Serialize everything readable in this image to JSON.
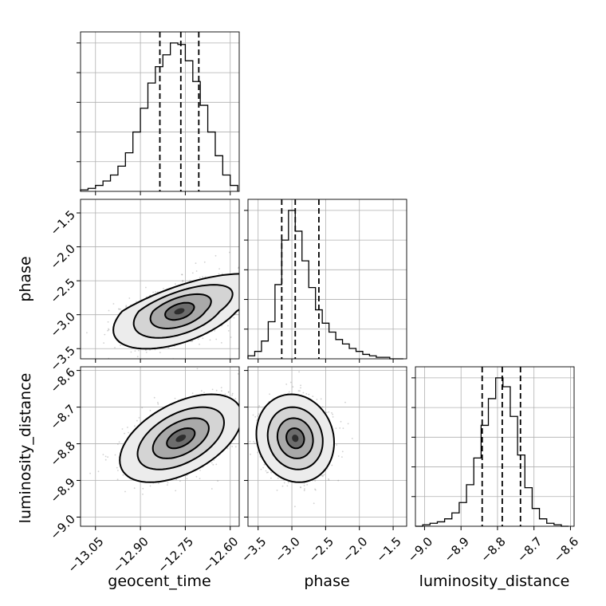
{
  "chart_data": {
    "type": "corner",
    "grid": true,
    "parameters": [
      "geocent_time",
      "phase",
      "luminosity_distance"
    ],
    "axes": {
      "geocent_time": {
        "label": "geocent_time",
        "range": [
          -13.1,
          -12.57
        ],
        "ticks": [
          -13.05,
          -12.9,
          -12.75,
          -12.6
        ],
        "tick_labels": [
          "−13.05",
          "−12.90",
          "−12.75",
          "−12.60"
        ]
      },
      "phase": {
        "label": "phase",
        "range": [
          -3.65,
          -1.3
        ],
        "ticks": [
          -3.5,
          -3.0,
          -2.5,
          -2.0,
          -1.5
        ],
        "tick_labels": [
          "−3.5",
          "−3.0",
          "−2.5",
          "−2.0",
          "−1.5"
        ]
      },
      "luminosity_distance": {
        "label": "luminosity_distance",
        "range": [
          -9.025,
          -8.59
        ],
        "ticks": [
          -9.0,
          -8.9,
          -8.8,
          -8.7,
          -8.6
        ],
        "tick_labels": [
          "−9.0",
          "−8.9",
          "−8.8",
          "−8.7",
          "−8.6"
        ]
      }
    },
    "histograms": {
      "geocent_time": {
        "quantiles": [
          -12.835,
          -12.765,
          -12.705
        ],
        "bin_edges": [
          -13.1,
          -13.075,
          -13.05,
          -13.025,
          -13.0,
          -12.975,
          -12.95,
          -12.925,
          -12.9,
          -12.875,
          -12.85,
          -12.825,
          -12.8,
          -12.775,
          -12.75,
          -12.725,
          -12.7,
          -12.675,
          -12.65,
          -12.625,
          -12.6,
          -12.575
        ],
        "counts": [
          1,
          2,
          4,
          7,
          11,
          17,
          26,
          40,
          56,
          73,
          84,
          92,
          100,
          99,
          88,
          74,
          58,
          40,
          24,
          11,
          4
        ]
      },
      "phase": {
        "quantiles": [
          -3.15,
          -2.95,
          -2.6
        ],
        "bin_edges": [
          -3.65,
          -3.55,
          -3.45,
          -3.35,
          -3.25,
          -3.15,
          -3.05,
          -2.95,
          -2.85,
          -2.75,
          -2.65,
          -2.55,
          -2.45,
          -2.35,
          -2.25,
          -2.15,
          -2.05,
          -1.95,
          -1.85,
          -1.75,
          -1.65,
          -1.55,
          -1.45,
          -1.35
        ],
        "counts": [
          2,
          5,
          12,
          25,
          50,
          80,
          100,
          86,
          66,
          48,
          33,
          24,
          18,
          13,
          10,
          7,
          5,
          3,
          2,
          1,
          1,
          0,
          0
        ]
      },
      "luminosity_distance": {
        "quantiles": [
          -8.842,
          -8.787,
          -8.737
        ],
        "bin_edges": [
          -9.025,
          -9.005,
          -8.985,
          -8.965,
          -8.945,
          -8.925,
          -8.905,
          -8.885,
          -8.865,
          -8.845,
          -8.825,
          -8.805,
          -8.785,
          -8.765,
          -8.745,
          -8.725,
          -8.705,
          -8.685,
          -8.665,
          -8.645,
          -8.625,
          -8.605
        ],
        "counts": [
          0,
          1,
          2,
          3,
          5,
          9,
          16,
          28,
          46,
          68,
          86,
          100,
          94,
          74,
          48,
          26,
          12,
          5,
          2,
          1,
          0
        ]
      }
    },
    "pairs": [
      {
        "x": "geocent_time",
        "y": "phase",
        "center": [
          -12.77,
          -2.95
        ],
        "sigma": [
          0.085,
          0.23
        ],
        "correlation": 0.35,
        "contour_levels": [
          1,
          2,
          3
        ],
        "shift_x_per_y": 0.045
      },
      {
        "x": "geocent_time",
        "y": "luminosity_distance",
        "center": [
          -12.765,
          -8.785
        ],
        "sigma": [
          0.085,
          0.05
        ],
        "correlation": 0.5,
        "contour_levels": [
          1,
          2,
          3
        ],
        "shift_x_per_y": 0
      },
      {
        "x": "phase",
        "y": "luminosity_distance",
        "center": [
          -2.95,
          -8.785
        ],
        "sigma": [
          0.24,
          0.05
        ],
        "correlation": -0.1,
        "contour_levels": [
          1,
          2,
          3
        ],
        "shift_x_per_y": 0
      }
    ]
  }
}
